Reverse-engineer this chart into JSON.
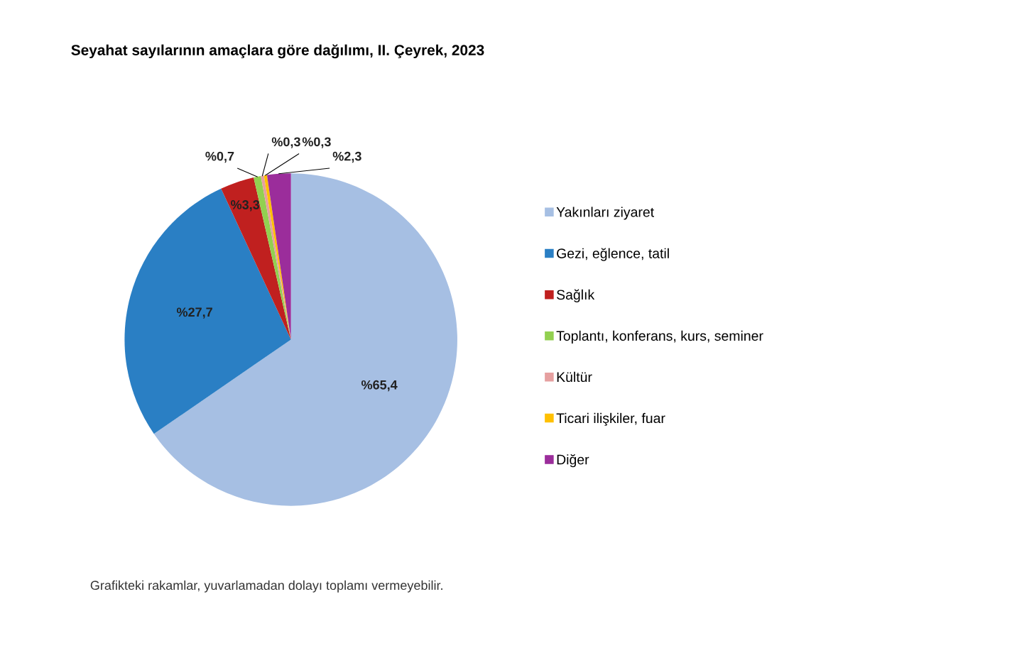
{
  "chart_data": {
    "type": "pie",
    "title": "Seyahat sayılarının amaçlara göre dağılımı, II. Çeyrek, 2023",
    "categories": [
      "Yakınları ziyaret",
      "Gezi, eğlence, tatil",
      "Sağlık",
      "Toplantı, konferans, kurs, seminer",
      "Kültür",
      "Ticari ilişkiler, fuar",
      "Diğer"
    ],
    "values": [
      65.4,
      27.7,
      3.3,
      0.7,
      0.3,
      0.3,
      2.3
    ],
    "colors": [
      "#a6bfe3",
      "#2a7fc4",
      "#c0201f",
      "#92d050",
      "#e6a0a0",
      "#ffc000",
      "#9b2d9b"
    ],
    "value_labels": [
      "%65,4",
      "%27,7",
      "%3,3",
      "%0,7",
      "%0,3",
      "%0,3",
      "%2,3"
    ],
    "legend": "right",
    "annotations": [
      "Grafikteki rakamlar, yuvarlamadan dolayı toplamı vermeyebilir."
    ]
  }
}
